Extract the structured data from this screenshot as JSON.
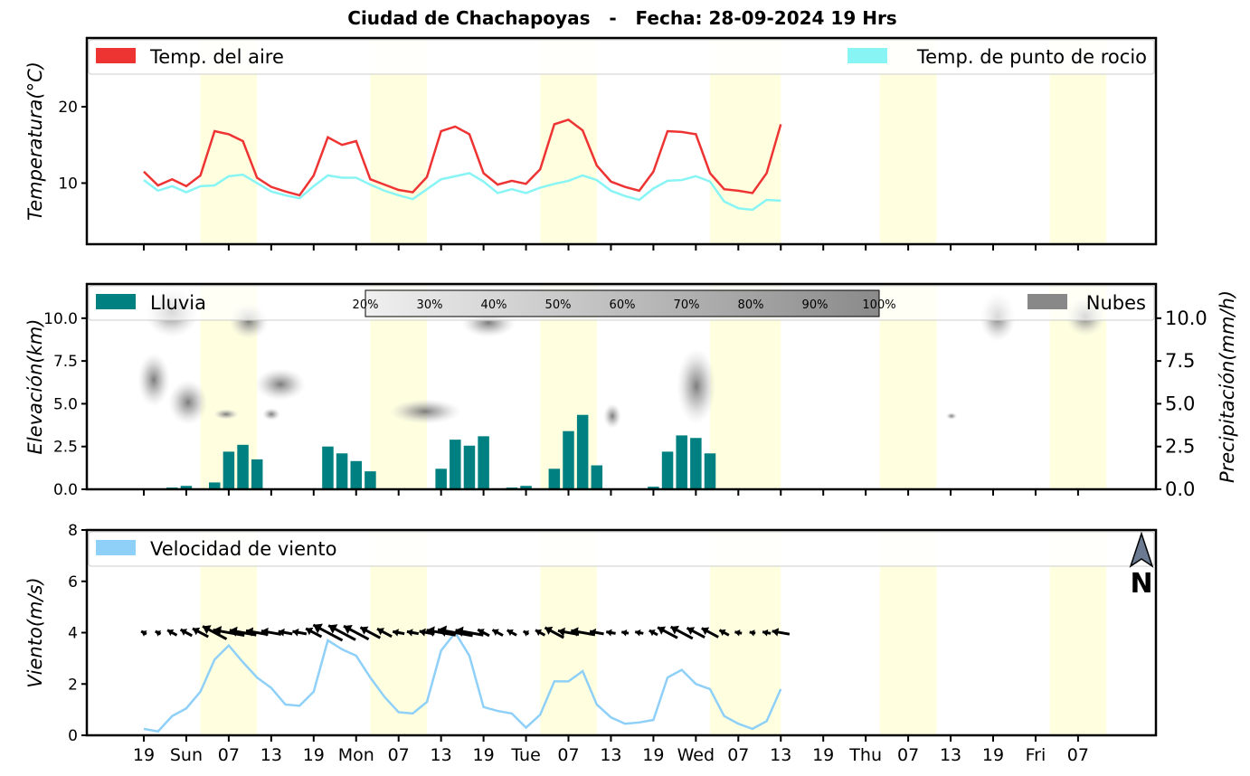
{
  "title": "Ciudad de Chachapoyas   -   Fecha: 28-09-2024 19 Hrs",
  "x_tick_labels": [
    "19",
    "Sun",
    "07",
    "13",
    "19",
    "Mon",
    "07",
    "13",
    "19",
    "Tue",
    "07",
    "13",
    "19",
    "Wed",
    "07",
    "13",
    "19",
    "Thu",
    "07",
    "13",
    "19",
    "Fri",
    "07"
  ],
  "colors": {
    "temperature": "#ee3333",
    "dewpoint": "#88f4f4",
    "rain": "#008080",
    "cloud": "#888888",
    "wind": "#8fd0f8",
    "daylight": "#ffffe0"
  },
  "chart_data": [
    {
      "type": "line",
      "name": "temperature-panel",
      "ylabel": "Temperatura(°C)",
      "ylim": [
        2,
        29
      ],
      "yticks": [
        10,
        20
      ],
      "x_step_hours": 3,
      "series": [
        {
          "name": "Temp. del aire",
          "values": [
            11.5,
            9.7,
            10.5,
            9.6,
            11.0,
            16.8,
            16.4,
            15.5,
            10.7,
            9.5,
            8.9,
            8.4,
            11.0,
            16.0,
            15.0,
            15.5,
            10.5,
            9.8,
            9.1,
            8.8,
            10.8,
            16.8,
            17.4,
            16.4,
            11.3,
            9.8,
            10.3,
            9.9,
            11.8,
            17.7,
            18.3,
            16.9,
            12.3,
            10.2,
            9.5,
            9.0,
            11.5,
            16.8,
            16.7,
            16.4,
            11.3,
            9.2,
            9.0,
            8.7,
            11.3,
            17.7
          ]
        },
        {
          "name": "Temp. de punto de rocio",
          "values": [
            10.4,
            9.0,
            9.6,
            8.8,
            9.6,
            9.7,
            10.9,
            11.1,
            10.0,
            8.9,
            8.4,
            8.0,
            9.6,
            11.0,
            10.7,
            10.7,
            9.8,
            9.0,
            8.4,
            7.9,
            9.2,
            10.5,
            10.9,
            11.3,
            10.2,
            8.7,
            9.2,
            8.7,
            9.4,
            9.9,
            10.3,
            11.0,
            10.4,
            9.0,
            8.3,
            7.8,
            9.3,
            10.3,
            10.4,
            10.9,
            10.2,
            7.6,
            6.7,
            6.5,
            7.8,
            7.7
          ]
        }
      ]
    },
    {
      "type": "bar",
      "name": "precipitation-panel",
      "ylabel": "Elevación(km)",
      "ylabel_right": "Precipitación(mm/h)",
      "ylim": [
        0,
        12
      ],
      "yticks": [
        0.0,
        2.5,
        5.0,
        7.5,
        10.0
      ],
      "ytick_labels": [
        "0.0",
        "2.5",
        "5.0",
        "7.5",
        "10.0"
      ],
      "series": [
        {
          "name": "Lluvia",
          "values": [
            0.0,
            0.05,
            0.1,
            0.2,
            0.05,
            0.4,
            2.2,
            2.6,
            1.75,
            0.0,
            0.02,
            0.05,
            0.05,
            2.5,
            2.1,
            1.65,
            1.05,
            0.02,
            0.0,
            0.0,
            0.0,
            1.2,
            2.9,
            2.55,
            3.1,
            0.0,
            0.1,
            0.2,
            0.0,
            1.2,
            3.4,
            4.35,
            1.4,
            0.0,
            0.0,
            0.0,
            0.15,
            2.2,
            3.15,
            3.0,
            2.1,
            0.0,
            0.0,
            0.0,
            0.0,
            0.0
          ]
        },
        {
          "name": "Nubes",
          "values": []
        }
      ],
      "cloud_scale_labels": [
        "20%",
        "30%",
        "40%",
        "50%",
        "60%",
        "70%",
        "80%",
        "90%",
        "100%"
      ]
    },
    {
      "type": "line",
      "name": "wind-panel",
      "ylabel": "Viento(m/s)",
      "ylim": [
        0,
        8
      ],
      "yticks": [
        0,
        2,
        4,
        6,
        8
      ],
      "series": [
        {
          "name": "Velocidad de viento",
          "values": [
            0.25,
            0.15,
            0.75,
            1.05,
            1.7,
            2.95,
            3.5,
            2.85,
            2.25,
            1.85,
            1.2,
            1.15,
            1.7,
            3.7,
            3.35,
            3.1,
            2.25,
            1.5,
            0.9,
            0.85,
            1.3,
            3.3,
            4.0,
            3.1,
            1.1,
            0.95,
            0.85,
            0.3,
            0.8,
            2.1,
            2.1,
            2.5,
            1.2,
            0.7,
            0.45,
            0.5,
            0.6,
            2.25,
            2.55,
            2.0,
            1.8,
            0.75,
            0.45,
            0.25,
            0.55,
            1.8
          ]
        }
      ],
      "wind_arrow_lengths": [
        0.1,
        0.1,
        0.3,
        0.4,
        0.6,
        1.0,
        1.2,
        1.0,
        0.8,
        0.7,
        0.45,
        0.45,
        0.6,
        1.25,
        1.15,
        1.05,
        0.8,
        0.55,
        0.35,
        0.35,
        0.5,
        1.1,
        1.35,
        1.05,
        0.4,
        0.35,
        0.3,
        0.1,
        0.3,
        0.75,
        0.75,
        0.85,
        0.45,
        0.25,
        0.15,
        0.2,
        0.25,
        0.8,
        0.9,
        0.7,
        0.65,
        0.3,
        0.15,
        0.1,
        0.2,
        0.6
      ],
      "north_label": "N"
    }
  ]
}
